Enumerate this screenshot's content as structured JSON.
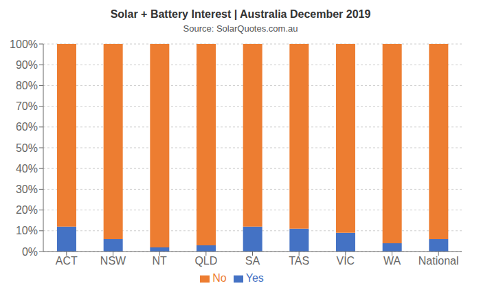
{
  "chart_data": {
    "type": "bar",
    "title": "Solar + Battery Interest  |  Australia December 2019",
    "subtitle": "Source: SolarQuotes.com.au",
    "categories": [
      "ACT",
      "NSW",
      "NT",
      "QLD",
      "SA",
      "TAS",
      "VIC",
      "WA",
      "National"
    ],
    "series": [
      {
        "name": "Yes",
        "color": "#4472C4",
        "values": [
          12,
          6,
          2,
          3,
          12,
          11,
          9,
          4,
          6
        ]
      },
      {
        "name": "No",
        "color": "#ED7D31",
        "values": [
          88,
          94,
          98,
          97,
          88,
          89,
          91,
          96,
          94
        ]
      }
    ],
    "stacked": true,
    "ylim": [
      0,
      100
    ],
    "yticks": [
      {
        "value": 0,
        "label": "0%"
      },
      {
        "value": 10,
        "label": "10%"
      },
      {
        "value": 20,
        "label": "20%"
      },
      {
        "value": 30,
        "label": "30%"
      },
      {
        "value": 40,
        "label": "40%"
      },
      {
        "value": 50,
        "label": "50%"
      },
      {
        "value": 60,
        "label": "60%"
      },
      {
        "value": 70,
        "label": "70%"
      },
      {
        "value": 80,
        "label": "80%"
      },
      {
        "value": 90,
        "label": "90%"
      },
      {
        "value": 100,
        "label": "100%"
      }
    ],
    "grid": true,
    "legend": "bottom"
  }
}
